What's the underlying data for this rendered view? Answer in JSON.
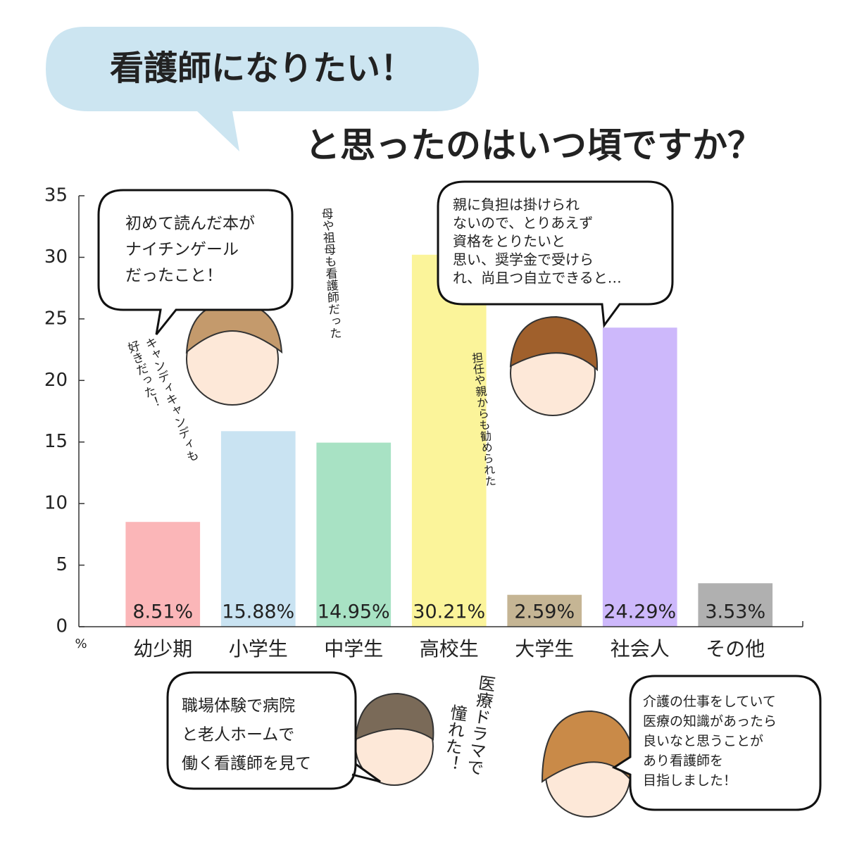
{
  "chart_data": {
    "type": "bar",
    "title": "看護師になりたい！",
    "subtitle": "と思ったのはいつ頃ですか？",
    "categories": [
      "幼少期",
      "小学生",
      "中学生",
      "高校生",
      "大学生",
      "社会人",
      "その他"
    ],
    "values": [
      8.51,
      15.88,
      14.95,
      30.21,
      2.59,
      24.29,
      3.53
    ],
    "value_labels": [
      "8.51%",
      "15.88%",
      "14.95%",
      "30.21%",
      "2.59%",
      "24.29%",
      "3.53%"
    ],
    "colors": [
      "#fbb6b8",
      "#c9e3f2",
      "#a8e2c4",
      "#fbf49a",
      "#c5b594",
      "#cdb8fb",
      "#b0b0b0"
    ],
    "ylim": [
      0,
      35
    ],
    "yticks": [
      0,
      5,
      10,
      15,
      20,
      25,
      30,
      35
    ],
    "y_unit": "%"
  },
  "comments": [
    {
      "lines": [
        "初めて読んだ本が",
        "ナイチンゲール",
        "だったこと！"
      ]
    },
    {
      "lines": [
        "母や祖母も看護師だった"
      ]
    },
    {
      "lines": [
        "キャンディキャンディも",
        "好きだった！"
      ]
    },
    {
      "lines": [
        "親に負担は掛けられ",
        "ないので、とりあえず",
        "資格をとりたいと",
        "思い、奨学金で受けら",
        "れ、尚且つ自立できると…"
      ]
    },
    {
      "lines": [
        "担任や親からも勧められた"
      ]
    },
    {
      "lines": [
        "職場体験で病院",
        "と老人ホームで",
        "働く看護師を見て"
      ]
    },
    {
      "lines": [
        "医療ドラマで",
        "憧れた！"
      ]
    },
    {
      "lines": [
        "介護の仕事をしていて",
        "医療の知識があったら",
        "良いなと思うことが",
        "あり看護師を",
        "目指しました！"
      ]
    }
  ]
}
